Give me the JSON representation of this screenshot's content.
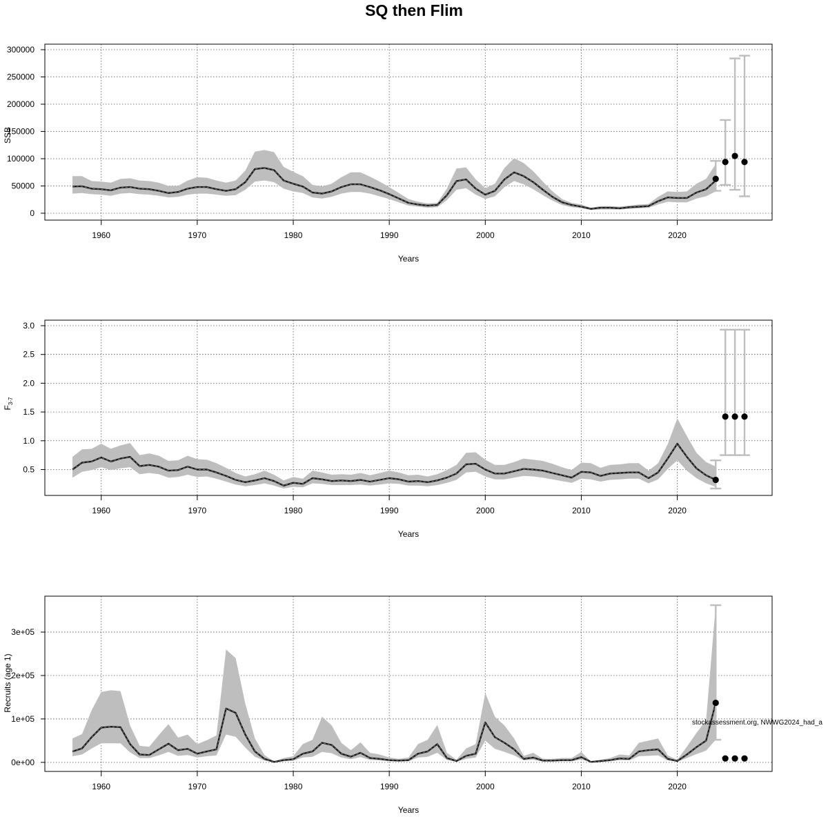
{
  "title": "SQ then Flim",
  "source_note": "stockassessment.org, NWWG2024_had_a",
  "colors": {
    "band": "#bebebe",
    "line": "#1a1a1a",
    "grid": "#555555",
    "error_bar": "#bebebe",
    "forecast_point": "#000000"
  },
  "chart_data": [
    {
      "type": "line",
      "panel": "SSB",
      "ylabel": "SSB",
      "xlabel": "Years",
      "xlim": [
        1957,
        2027
      ],
      "ylim": [
        0,
        300000
      ],
      "xticks": [
        1960,
        1970,
        1980,
        1990,
        2000,
        2010,
        2020
      ],
      "yticks": [
        0,
        50000,
        100000,
        150000,
        200000,
        250000,
        300000
      ],
      "ytick_labels": [
        "0",
        "50000",
        "100000",
        "150000",
        "200000",
        "250000",
        "300000"
      ],
      "grid": true,
      "x": [
        1957,
        1958,
        1959,
        1960,
        1961,
        1962,
        1963,
        1964,
        1965,
        1966,
        1967,
        1968,
        1969,
        1970,
        1971,
        1972,
        1973,
        1974,
        1975,
        1976,
        1977,
        1978,
        1979,
        1980,
        1981,
        1982,
        1983,
        1984,
        1985,
        1986,
        1987,
        1988,
        1989,
        1990,
        1991,
        1992,
        1993,
        1994,
        1995,
        1996,
        1997,
        1998,
        1999,
        2000,
        2001,
        2002,
        2003,
        2004,
        2005,
        2006,
        2007,
        2008,
        2009,
        2010,
        2011,
        2012,
        2013,
        2014,
        2015,
        2016,
        2017,
        2018,
        2019,
        2020,
        2021,
        2022,
        2023,
        2024
      ],
      "estimate": [
        49000,
        49500,
        45000,
        44000,
        42000,
        47000,
        48000,
        45000,
        44000,
        41000,
        37000,
        39000,
        45000,
        48000,
        48000,
        44000,
        41000,
        44000,
        57000,
        81000,
        83000,
        79000,
        60000,
        54000,
        49000,
        38000,
        36000,
        40000,
        48000,
        53000,
        53000,
        48000,
        42000,
        35000,
        27000,
        19000,
        16000,
        14000,
        15000,
        33000,
        59000,
        62000,
        45000,
        34000,
        41000,
        62000,
        75000,
        68000,
        57000,
        43000,
        30000,
        20000,
        15000,
        12000,
        8000,
        10000,
        10000,
        9000,
        11000,
        12000,
        13000,
        22000,
        29000,
        28000,
        28000,
        38000,
        44000,
        60000
      ],
      "lower": [
        36000,
        37000,
        35000,
        34000,
        32000,
        36000,
        37000,
        35000,
        34000,
        32000,
        29000,
        30000,
        34000,
        36000,
        36000,
        34000,
        32000,
        33000,
        43000,
        58000,
        60000,
        57000,
        45000,
        40000,
        37000,
        29000,
        27000,
        30000,
        36000,
        39000,
        39000,
        36000,
        31000,
        26000,
        20000,
        14000,
        12000,
        10000,
        11000,
        24000,
        43000,
        46000,
        34000,
        26000,
        31000,
        48000,
        59000,
        53000,
        44000,
        33000,
        23000,
        15000,
        11000,
        9000,
        6000,
        7000,
        7000,
        7000,
        8000,
        9000,
        10000,
        16000,
        21000,
        20000,
        20000,
        27000,
        31000,
        40000
      ],
      "upper": [
        68000,
        68000,
        59000,
        58000,
        56000,
        63000,
        64000,
        60000,
        59000,
        56000,
        50000,
        50000,
        60000,
        66000,
        65000,
        60000,
        56000,
        60000,
        78000,
        113000,
        116000,
        112000,
        85000,
        76000,
        68000,
        52000,
        49000,
        54000,
        66000,
        75000,
        75000,
        67000,
        58000,
        48000,
        37000,
        26000,
        21000,
        18000,
        19000,
        45000,
        82000,
        84000,
        62000,
        46000,
        54000,
        83000,
        101000,
        92000,
        77000,
        58000,
        40000,
        26000,
        19000,
        16000,
        10000,
        13000,
        13000,
        12000,
        14000,
        16000,
        17000,
        30000,
        40000,
        39000,
        40000,
        54000,
        63000,
        90000
      ],
      "forecast": {
        "x": [
          2024,
          2025,
          2026,
          2027
        ],
        "values": [
          63000,
          94000,
          105000,
          94000
        ],
        "lower": [
          41000,
          52000,
          43000,
          31000
        ],
        "upper": [
          96000,
          171000,
          284000,
          289000
        ]
      }
    },
    {
      "type": "line",
      "panel": "F",
      "ylabel": "F",
      "ylabel_sub": "3-7",
      "xlabel": "Years",
      "xlim": [
        1957,
        2027
      ],
      "ylim": [
        0.17,
        3.0
      ],
      "xticks": [
        1960,
        1970,
        1980,
        1990,
        2000,
        2010,
        2020
      ],
      "yticks": [
        0.5,
        1.0,
        1.5,
        2.0,
        2.5,
        3.0
      ],
      "ytick_labels": [
        "0.5",
        "1.0",
        "1.5",
        "2.0",
        "2.5",
        "3.0"
      ],
      "grid": true,
      "x": [
        1957,
        1958,
        1959,
        1960,
        1961,
        1962,
        1963,
        1964,
        1965,
        1966,
        1967,
        1968,
        1969,
        1970,
        1971,
        1972,
        1973,
        1974,
        1975,
        1976,
        1977,
        1978,
        1979,
        1980,
        1981,
        1982,
        1983,
        1984,
        1985,
        1986,
        1987,
        1988,
        1989,
        1990,
        1991,
        1992,
        1993,
        1994,
        1995,
        1996,
        1997,
        1998,
        1999,
        2000,
        2001,
        2002,
        2003,
        2004,
        2005,
        2006,
        2007,
        2008,
        2009,
        2010,
        2011,
        2012,
        2013,
        2014,
        2015,
        2016,
        2017,
        2018,
        2019,
        2020,
        2021,
        2022,
        2023,
        2024
      ],
      "estimate": [
        0.5,
        0.62,
        0.64,
        0.71,
        0.64,
        0.69,
        0.72,
        0.56,
        0.58,
        0.55,
        0.48,
        0.49,
        0.55,
        0.5,
        0.5,
        0.45,
        0.39,
        0.32,
        0.28,
        0.31,
        0.35,
        0.3,
        0.22,
        0.27,
        0.25,
        0.35,
        0.33,
        0.3,
        0.31,
        0.3,
        0.32,
        0.29,
        0.32,
        0.35,
        0.33,
        0.29,
        0.3,
        0.28,
        0.31,
        0.36,
        0.43,
        0.59,
        0.6,
        0.5,
        0.43,
        0.43,
        0.47,
        0.51,
        0.5,
        0.48,
        0.44,
        0.4,
        0.36,
        0.46,
        0.45,
        0.39,
        0.43,
        0.44,
        0.45,
        0.45,
        0.35,
        0.45,
        0.69,
        0.95,
        0.72,
        0.52,
        0.4,
        0.32
      ],
      "lower": [
        0.36,
        0.46,
        0.49,
        0.54,
        0.49,
        0.52,
        0.54,
        0.42,
        0.44,
        0.42,
        0.36,
        0.37,
        0.41,
        0.37,
        0.38,
        0.34,
        0.29,
        0.24,
        0.21,
        0.23,
        0.26,
        0.22,
        0.17,
        0.2,
        0.19,
        0.26,
        0.25,
        0.23,
        0.23,
        0.23,
        0.24,
        0.22,
        0.24,
        0.26,
        0.25,
        0.22,
        0.22,
        0.21,
        0.23,
        0.27,
        0.32,
        0.45,
        0.46,
        0.38,
        0.33,
        0.33,
        0.36,
        0.39,
        0.38,
        0.36,
        0.33,
        0.3,
        0.27,
        0.34,
        0.33,
        0.29,
        0.32,
        0.33,
        0.34,
        0.34,
        0.26,
        0.33,
        0.51,
        0.66,
        0.48,
        0.35,
        0.26,
        0.2
      ],
      "upper": [
        0.72,
        0.85,
        0.86,
        0.95,
        0.86,
        0.92,
        0.96,
        0.75,
        0.78,
        0.74,
        0.65,
        0.66,
        0.74,
        0.68,
        0.67,
        0.61,
        0.53,
        0.44,
        0.38,
        0.42,
        0.48,
        0.41,
        0.31,
        0.37,
        0.34,
        0.48,
        0.45,
        0.41,
        0.42,
        0.41,
        0.44,
        0.4,
        0.44,
        0.48,
        0.45,
        0.4,
        0.41,
        0.38,
        0.42,
        0.49,
        0.58,
        0.79,
        0.8,
        0.67,
        0.58,
        0.58,
        0.63,
        0.69,
        0.67,
        0.65,
        0.6,
        0.54,
        0.49,
        0.62,
        0.61,
        0.53,
        0.58,
        0.59,
        0.61,
        0.61,
        0.48,
        0.61,
        0.94,
        1.39,
        1.08,
        0.79,
        0.63,
        0.55
      ],
      "forecast": {
        "x": [
          2024,
          2025,
          2026,
          2027
        ],
        "values": [
          0.32,
          1.42,
          1.42,
          1.42
        ],
        "lower": [
          0.17,
          0.75,
          0.75,
          0.75
        ],
        "upper": [
          0.66,
          2.93,
          2.93,
          2.93
        ]
      }
    },
    {
      "type": "line",
      "panel": "Recruits",
      "ylabel": "Recruits (age 1)",
      "xlabel": "Years",
      "xlim": [
        1957,
        2027
      ],
      "ylim": [
        -5000,
        370000
      ],
      "xticks": [
        1960,
        1970,
        1980,
        1990,
        2000,
        2010,
        2020
      ],
      "yticks": [
        0,
        100000,
        200000,
        300000
      ],
      "ytick_labels": [
        "0e+00",
        "1e+05",
        "2e+05",
        "3e+05"
      ],
      "grid": true,
      "x": [
        1957,
        1958,
        1959,
        1960,
        1961,
        1962,
        1963,
        1964,
        1965,
        1966,
        1967,
        1968,
        1969,
        1970,
        1971,
        1972,
        1973,
        1974,
        1975,
        1976,
        1977,
        1978,
        1979,
        1980,
        1981,
        1982,
        1983,
        1984,
        1985,
        1986,
        1987,
        1988,
        1989,
        1990,
        1991,
        1992,
        1993,
        1994,
        1995,
        1996,
        1997,
        1998,
        1999,
        2000,
        2001,
        2002,
        2003,
        2004,
        2005,
        2006,
        2007,
        2008,
        2009,
        2010,
        2011,
        2012,
        2013,
        2014,
        2015,
        2016,
        2017,
        2018,
        2019,
        2020,
        2021,
        2022,
        2023,
        2024
      ],
      "estimate": [
        25000,
        32000,
        58000,
        80000,
        82000,
        81000,
        42000,
        18000,
        17000,
        30000,
        43000,
        28000,
        31000,
        20000,
        25000,
        30000,
        124000,
        114000,
        64000,
        25000,
        8000,
        1000,
        5000,
        7000,
        20000,
        25000,
        45000,
        40000,
        20000,
        13000,
        22000,
        10000,
        8000,
        5000,
        4000,
        5000,
        20000,
        25000,
        42000,
        10000,
        3000,
        15000,
        20000,
        92000,
        58000,
        45000,
        30000,
        8000,
        11000,
        4000,
        4000,
        5000,
        5000,
        12000,
        1000,
        3000,
        5000,
        9000,
        8000,
        25000,
        28000,
        30000,
        8000,
        3000,
        18000,
        35000,
        50000,
        137000
      ],
      "lower": [
        14000,
        18000,
        32000,
        44000,
        44000,
        44000,
        23000,
        10000,
        10000,
        16000,
        24000,
        15000,
        17000,
        11000,
        14000,
        16000,
        64000,
        59000,
        34000,
        13000,
        4000,
        500,
        2500,
        4000,
        11000,
        13000,
        24000,
        21000,
        11000,
        7000,
        12000,
        5500,
        4500,
        2500,
        2000,
        2500,
        11000,
        13000,
        22000,
        5500,
        1500,
        8000,
        11000,
        50000,
        31000,
        24000,
        16000,
        4500,
        6000,
        2000,
        2000,
        2500,
        2500,
        6500,
        500,
        1500,
        2500,
        5000,
        4500,
        14000,
        15000,
        16000,
        4500,
        1500,
        10000,
        19000,
        27000,
        52000
      ],
      "upper": [
        55000,
        65000,
        120000,
        162000,
        166000,
        164000,
        85000,
        38000,
        36000,
        63000,
        88000,
        57000,
        64000,
        42000,
        51000,
        62000,
        260000,
        240000,
        135000,
        55000,
        17000,
        2000,
        10000,
        14000,
        42000,
        52000,
        105000,
        85000,
        45000,
        28000,
        46000,
        22000,
        18000,
        11000,
        8000,
        11000,
        42000,
        52000,
        86000,
        22000,
        6000,
        32000,
        42000,
        160000,
        105000,
        85000,
        55000,
        15000,
        22000,
        8000,
        8000,
        10000,
        10000,
        24000,
        2000,
        6000,
        10000,
        18000,
        16000,
        45000,
        50000,
        55000,
        16000,
        6000,
        36000,
        68000,
        97000,
        362000
      ],
      "forecast": {
        "x": [
          2024,
          2025,
          2026,
          2027
        ],
        "values": [
          137000,
          9000,
          9000,
          9000
        ],
        "lower": [
          52000,
          9000,
          9000,
          9000
        ],
        "upper": [
          362000,
          9000,
          9000,
          9000
        ]
      }
    }
  ]
}
